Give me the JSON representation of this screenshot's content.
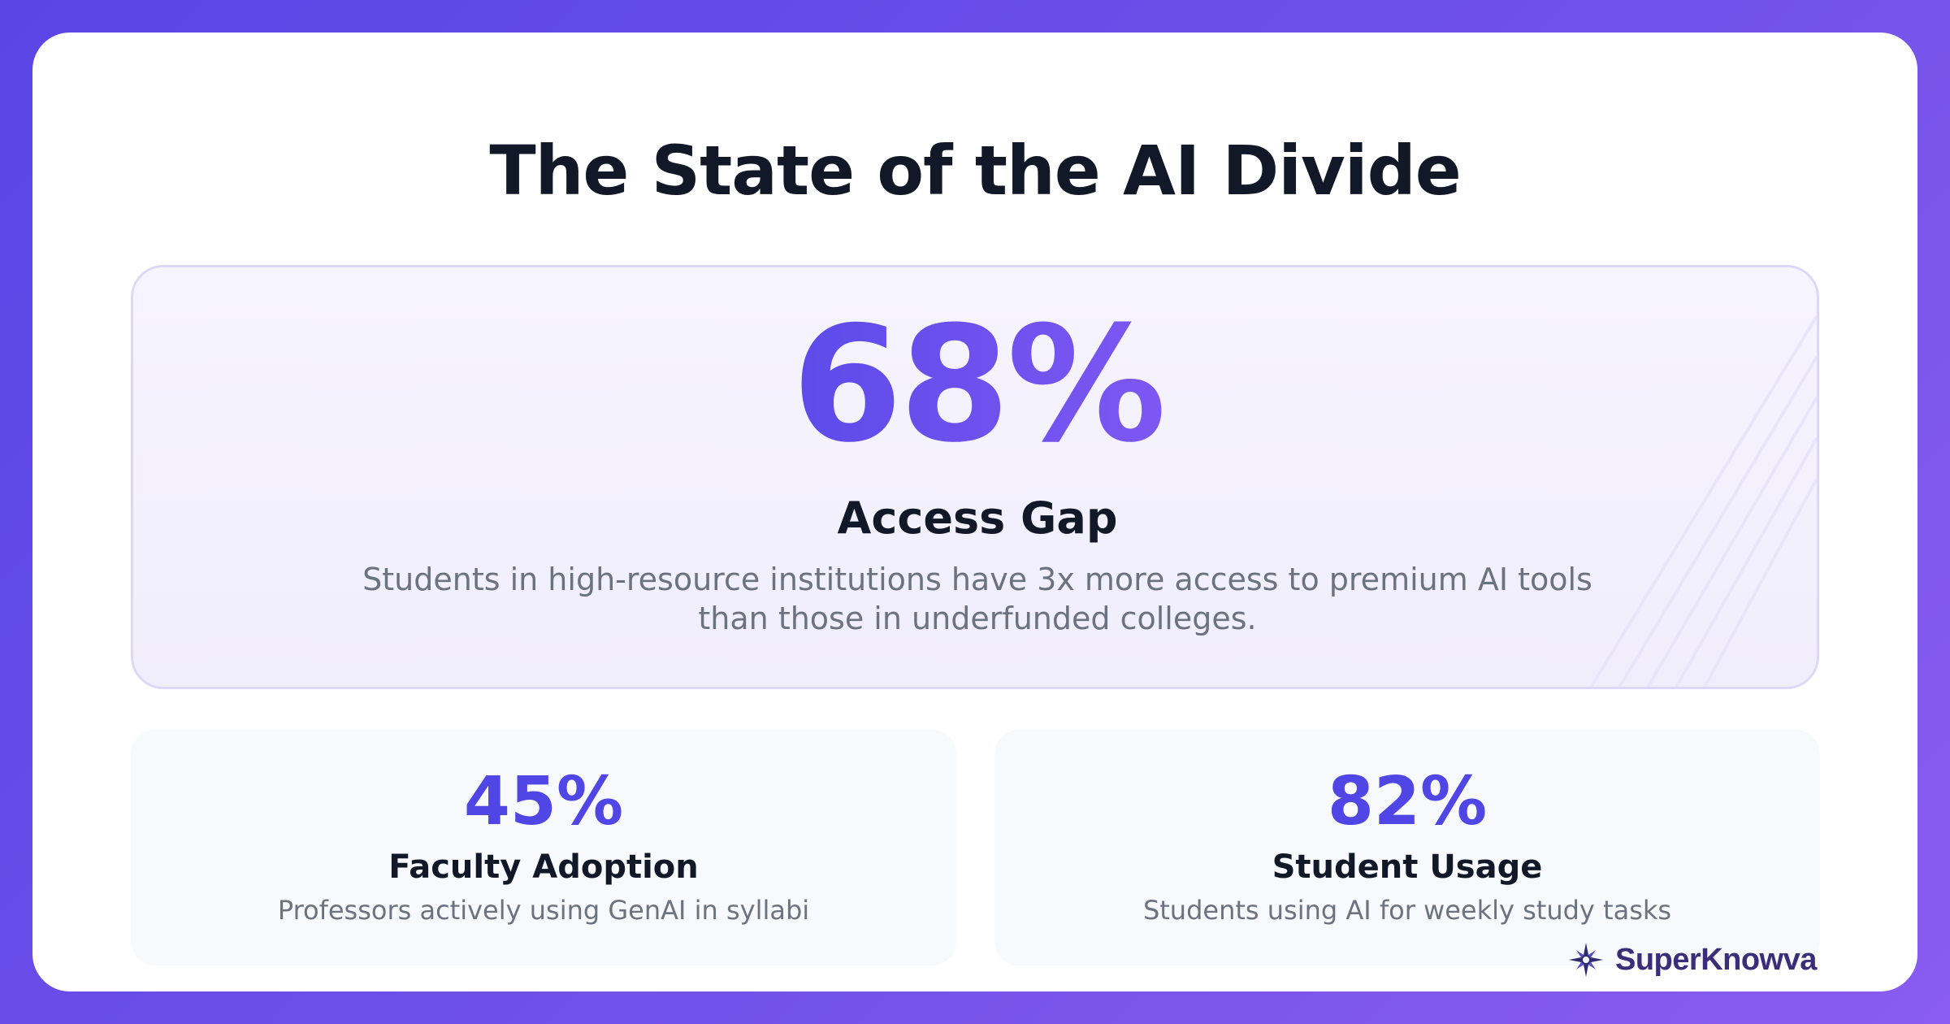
{
  "page": {
    "title": "The State of the AI Divide"
  },
  "hero": {
    "value": "68%",
    "heading": "Access Gap",
    "description": "Students in high-resource institutions have 3x more access to premium AI tools than those in underfunded colleges."
  },
  "stats": [
    {
      "value": "45%",
      "heading": "Faculty Adoption",
      "description": "Professors actively using GenAI in syllabi"
    },
    {
      "value": "82%",
      "heading": "Student Usage",
      "description": "Students using AI for weekly study tasks"
    }
  ],
  "brand": {
    "name": "SuperKnowva",
    "icon": "sparkle-logo-icon"
  },
  "colors": {
    "background_start": "#5b45e6",
    "background_end": "#8a5cf0",
    "accent": "#4f46e5",
    "accent_secondary": "#8b5cf6",
    "heading": "#111827",
    "muted_text": "#6b7280"
  }
}
